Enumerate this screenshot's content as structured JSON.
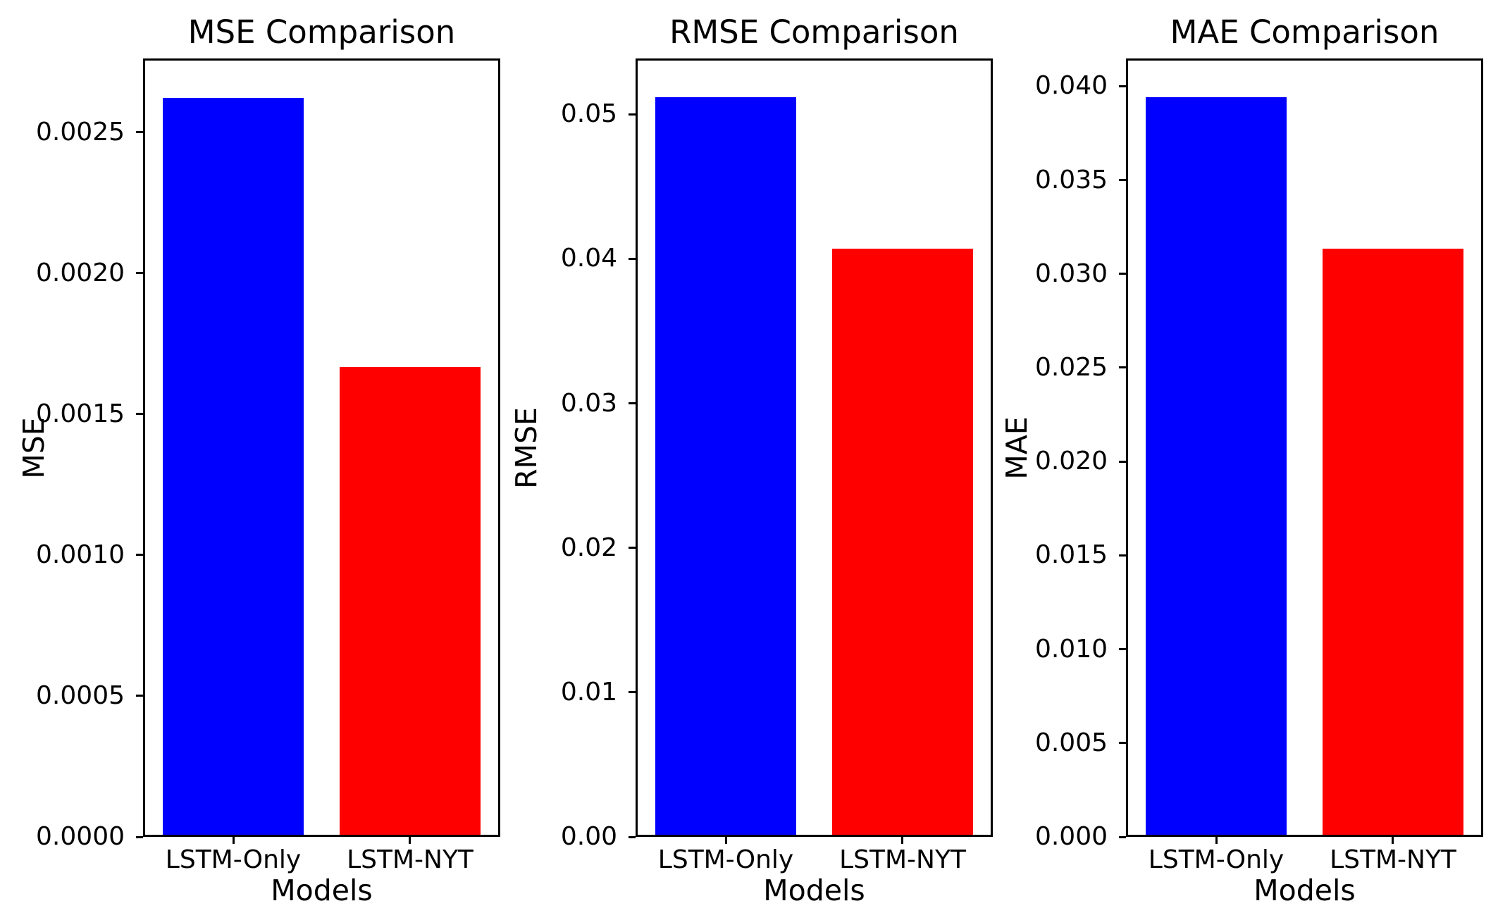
{
  "figure": {
    "background": "#ffffff",
    "text_color": "#000000"
  },
  "chart_data": [
    {
      "type": "bar",
      "title": "MSE Comparison",
      "xlabel": "Models",
      "ylabel": "MSE",
      "categories": [
        "LSTM-Only",
        "LSTM-NYT"
      ],
      "values": [
        0.00263,
        0.00167
      ],
      "bar_colors": [
        "#0000ff",
        "#ff0000"
      ],
      "ylim": [
        0,
        0.002762
      ],
      "yticks": [
        "0.0000",
        "0.0005",
        "0.0010",
        "0.0015",
        "0.0020",
        "0.0025"
      ],
      "grid": false,
      "legend": false
    },
    {
      "type": "bar",
      "title": "RMSE Comparison",
      "xlabel": "Models",
      "ylabel": "RMSE",
      "categories": [
        "LSTM-Only",
        "LSTM-NYT"
      ],
      "values": [
        0.0513,
        0.0408
      ],
      "bar_colors": [
        "#0000ff",
        "#ff0000"
      ],
      "ylim": [
        0,
        0.053865
      ],
      "yticks": [
        "0.00",
        "0.01",
        "0.02",
        "0.03",
        "0.04",
        "0.05"
      ],
      "grid": false,
      "legend": false
    },
    {
      "type": "bar",
      "title": "MAE Comparison",
      "xlabel": "Models",
      "ylabel": "MAE",
      "categories": [
        "LSTM-Only",
        "LSTM-NYT"
      ],
      "values": [
        0.0395,
        0.0314
      ],
      "bar_colors": [
        "#0000ff",
        "#ff0000"
      ],
      "ylim": [
        0,
        0.041475
      ],
      "yticks": [
        "0.000",
        "0.005",
        "0.010",
        "0.015",
        "0.020",
        "0.025",
        "0.030",
        "0.035",
        "0.040"
      ],
      "grid": false,
      "legend": false
    }
  ]
}
